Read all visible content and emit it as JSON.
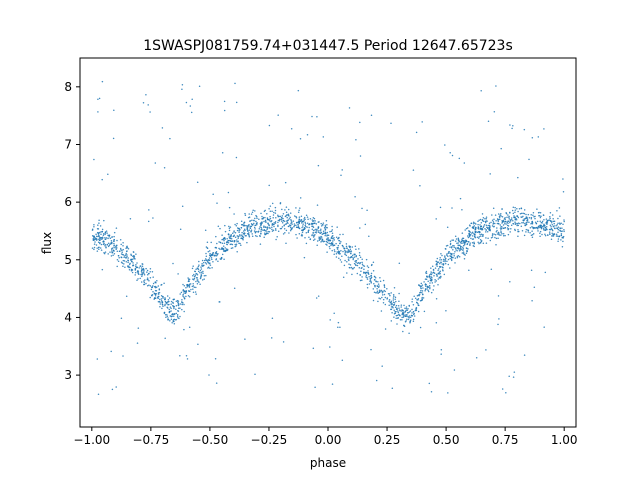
{
  "chart_data": {
    "type": "scatter",
    "title": "1SWASPJ081759.74+031447.5 Period 12647.65723s",
    "xlabel": "phase",
    "ylabel": "flux",
    "xlim": [
      -1.05,
      1.05
    ],
    "ylim": [
      2.1,
      8.5
    ],
    "xticks": [
      -1.0,
      -0.75,
      -0.5,
      -0.25,
      0.0,
      0.25,
      0.5,
      0.75,
      1.0
    ],
    "xtick_labels": [
      "−1.00",
      "−0.75",
      "−0.50",
      "−0.25",
      "0.00",
      "0.25",
      "0.50",
      "0.75",
      "1.00"
    ],
    "yticks": [
      3,
      4,
      5,
      6,
      7,
      8
    ],
    "ytick_labels": [
      "3",
      "4",
      "5",
      "6",
      "7",
      "8"
    ],
    "grid": false,
    "marker_color": "#1f77b4",
    "series": [
      {
        "description_curve": "phase-folded light curve, mean trend",
        "x": [
          -1.0,
          -0.9,
          -0.8,
          -0.7,
          -0.65,
          -0.6,
          -0.5,
          -0.4,
          -0.3,
          -0.2,
          -0.1,
          0.0,
          0.1,
          0.2,
          0.3,
          0.35,
          0.4,
          0.5,
          0.6,
          0.7,
          0.8,
          0.9,
          1.0
        ],
        "y": [
          5.45,
          5.25,
          4.85,
          4.3,
          4.05,
          4.45,
          5.05,
          5.4,
          5.6,
          5.68,
          5.6,
          5.4,
          5.05,
          4.6,
          4.1,
          4.05,
          4.45,
          5.05,
          5.4,
          5.6,
          5.68,
          5.62,
          5.5
        ]
      }
    ]
  }
}
